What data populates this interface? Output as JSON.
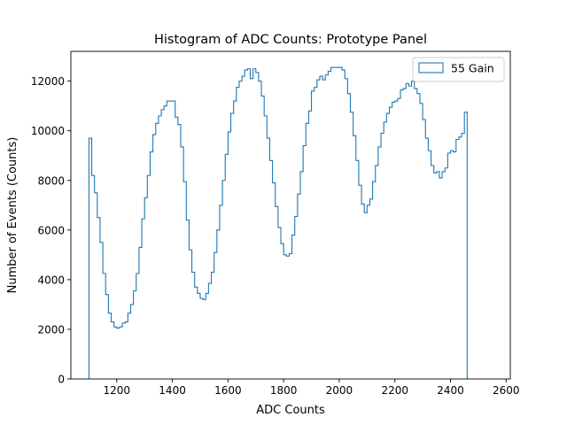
{
  "chart_data": {
    "type": "histogram",
    "title": "Histogram of ADC Counts: Prototype Panel",
    "xlabel": "ADC Counts",
    "ylabel": "Number of Events (Counts)",
    "xlim": [
      1035,
      2615
    ],
    "ylim": [
      0,
      13200
    ],
    "xticks": [
      1200,
      1400,
      1600,
      1800,
      2000,
      2200,
      2400,
      2600
    ],
    "yticks": [
      0,
      2000,
      4000,
      6000,
      8000,
      10000,
      12000
    ],
    "grid": false,
    "legend_position": "upper right",
    "series": [
      {
        "name": "55 Gain",
        "style": "step",
        "color": "#1f77b4",
        "bin_start": 1100,
        "bin_width": 10,
        "values": [
          9700,
          8200,
          7500,
          6500,
          5500,
          4250,
          3400,
          2650,
          2300,
          2100,
          2050,
          2100,
          2250,
          2300,
          2650,
          3000,
          3550,
          4250,
          5300,
          6450,
          7300,
          8200,
          9150,
          9850,
          10300,
          10600,
          10850,
          11000,
          11200,
          11200,
          11200,
          10550,
          10250,
          9350,
          7950,
          6400,
          5200,
          4300,
          3700,
          3450,
          3250,
          3200,
          3450,
          3850,
          4300,
          5100,
          6000,
          7000,
          8000,
          9050,
          9950,
          10700,
          11200,
          11750,
          12000,
          12200,
          12450,
          12500,
          12100,
          12500,
          12350,
          12000,
          11400,
          10600,
          9700,
          8800,
          7900,
          6950,
          6100,
          5450,
          5000,
          4950,
          5050,
          5800,
          6550,
          7450,
          8350,
          9400,
          10300,
          10800,
          11600,
          11750,
          12050,
          12200,
          12050,
          12250,
          12400,
          12550,
          12550,
          12550,
          12550,
          12450,
          12100,
          11500,
          10750,
          9800,
          8800,
          7800,
          7050,
          6700,
          7000,
          7250,
          7950,
          8600,
          9350,
          9900,
          10350,
          10700,
          10950,
          11150,
          11200,
          11300,
          11650,
          11700,
          11900,
          11800,
          12000,
          11700,
          11500,
          11100,
          10450,
          9700,
          9200,
          8600,
          8300,
          8350,
          8100,
          8350,
          8500,
          9100,
          9200,
          9150,
          9650,
          9750,
          9900,
          10750
        ]
      }
    ]
  }
}
